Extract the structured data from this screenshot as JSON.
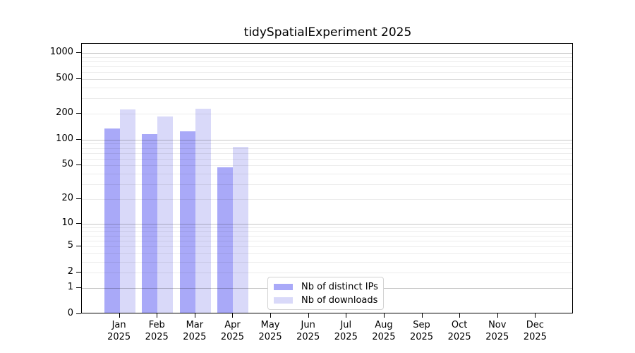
{
  "title": "tidySpatialExperiment 2025",
  "chart_data": {
    "type": "bar",
    "title": "tidySpatialExperiment 2025",
    "x": {
      "months": [
        "Jan",
        "Feb",
        "Mar",
        "Apr",
        "May",
        "Jun",
        "Jul",
        "Aug",
        "Sep",
        "Oct",
        "Nov",
        "Dec"
      ],
      "year": "2025"
    },
    "series": [
      {
        "name": "Nb of distinct IPs",
        "color": "#a9a9f8",
        "values": [
          134,
          117,
          124,
          48,
          0,
          0,
          0,
          0,
          0,
          0,
          0,
          0
        ]
      },
      {
        "name": "Nb of downloads",
        "color": "#d9d9f9",
        "values": [
          222,
          187,
          230,
          83,
          0,
          0,
          0,
          0,
          0,
          0,
          0,
          0
        ]
      }
    ],
    "y_axis": {
      "scale": "log1p",
      "tick_values": [
        0,
        1,
        2,
        5,
        10,
        20,
        50,
        100,
        200,
        500,
        1000
      ],
      "major_gridlines": [
        1,
        10,
        100,
        1000
      ],
      "minor_gridline_decades": [
        1,
        10,
        100
      ],
      "range_top": 1276
    },
    "grid": true,
    "legend": {
      "position": "bottom-center",
      "entries": [
        "Nb of distinct IPs",
        "Nb of downloads"
      ]
    }
  },
  "styles": {
    "bar_color_distinct_ips": "#a9a9f8",
    "bar_color_downloads": "#d9d9f9",
    "major_grid_color": "#c6c6c6",
    "minor_grid_color": "#ececec",
    "axis_color": "#000000",
    "legend_border_color": "#d2d2d2"
  }
}
